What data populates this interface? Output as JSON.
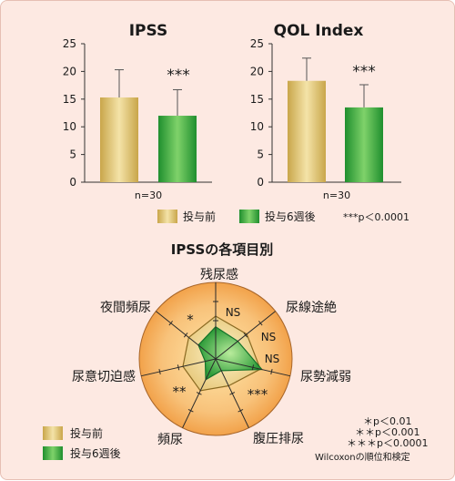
{
  "chart_data": [
    {
      "type": "bar",
      "title": "IPSS",
      "categories": [
        "投与前",
        "投与6週後"
      ],
      "values": [
        15.3,
        12.0
      ],
      "error_plus": [
        5.0,
        4.7
      ],
      "ylim": [
        0,
        25
      ],
      "yticks": [
        "25",
        "20",
        "15",
        "10",
        "5",
        "0"
      ],
      "significance": "***",
      "note": "n=30"
    },
    {
      "type": "bar",
      "title": "QOL Index",
      "categories": [
        "投与前",
        "投与6週後"
      ],
      "values": [
        18.3,
        13.5
      ],
      "error_plus": [
        4.1,
        4.1
      ],
      "ylim": [
        0,
        25
      ],
      "yticks": [
        "25",
        "20",
        "15",
        "10",
        "5",
        "0"
      ],
      "significance": "***",
      "note": "n=30"
    },
    {
      "type": "radar",
      "title": "IPSSの各項目別",
      "axes": [
        "残尿感",
        "尿線途絶",
        "尿勢減弱",
        "腹圧排尿",
        "頻尿",
        "尿意切迫感",
        "夜間頻尿"
      ],
      "axis_marks": [
        "NS",
        "NS",
        "NS",
        "***",
        "**",
        "",
        "*"
      ],
      "series": [
        {
          "name": "投与前",
          "values": [
            0.56,
            0.52,
            0.6,
            0.39,
            0.46,
            0.44,
            0.45
          ]
        },
        {
          "name": "投与6週後",
          "values": [
            0.42,
            0.37,
            0.62,
            0.17,
            0.3,
            0.14,
            0.29
          ]
        }
      ]
    }
  ],
  "legend_top": {
    "before": "投与前",
    "after": "投与6週後",
    "pvalue": "***p＜0.0001"
  },
  "legend_bottom": {
    "before": "投与前",
    "after": "投与6週後"
  },
  "footnotes": [
    "＊p＜0.01",
    "＊＊p＜0.001",
    "＊＊＊p＜0.0001",
    "Wilcoxonの順位和検定"
  ],
  "colors": {
    "background": "#fde9e2",
    "before_bar_light": "#f4e3a8",
    "before_bar_dark": "#c9a64a",
    "after_bar_light": "#7fd26a",
    "after_bar_dark": "#1f8f2e",
    "radar_outer": "#f2a24a",
    "radar_center": "#ffe6a8"
  }
}
